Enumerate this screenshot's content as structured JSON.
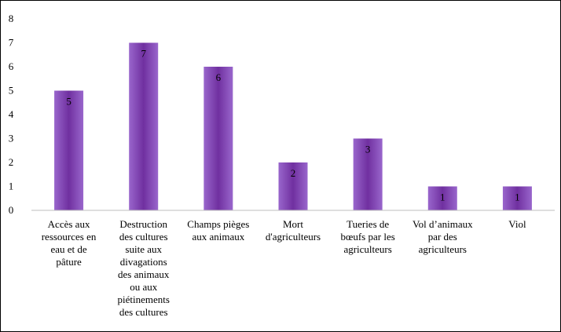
{
  "chart_data": {
    "type": "bar",
    "categories": [
      "Accès aux ressources en eau et de pâture",
      "Destruction des cultures suite aux divagations des animaux ou aux piétinements des cultures",
      "Champs pièges aux animaux",
      "Mort d'agriculteurs",
      "Tueries de bœufs par les agriculteurs",
      "Vol d’animaux par des agriculteurs",
      "Viol"
    ],
    "category_lines": [
      [
        "Accès aux",
        "ressources en",
        "eau et de",
        "pâture"
      ],
      [
        "Destruction",
        "des cultures",
        "suite aux",
        "divagations",
        "des animaux",
        "ou aux",
        "piétinements",
        "des cultures"
      ],
      [
        "Champs pièges",
        "aux animaux"
      ],
      [
        "Mort",
        "d'agriculteurs"
      ],
      [
        "Tueries de",
        "bœufs par les",
        "agriculteurs"
      ],
      [
        "Vol d’animaux",
        "par des",
        "agriculteurs"
      ],
      [
        "Viol"
      ]
    ],
    "values": [
      5,
      7,
      6,
      2,
      3,
      1,
      1
    ],
    "data_labels": [
      "5",
      "7",
      "6",
      "2",
      "3",
      "1",
      "1"
    ],
    "ylim": [
      0,
      8
    ],
    "yticks": [
      "0",
      "1",
      "2",
      "3",
      "4",
      "5",
      "6",
      "7",
      "8"
    ],
    "grid": false,
    "legend": "none",
    "bar_color": "#7030A0",
    "bar_color_light": "#9966CC",
    "title": "",
    "xlabel": "",
    "ylabel": ""
  }
}
